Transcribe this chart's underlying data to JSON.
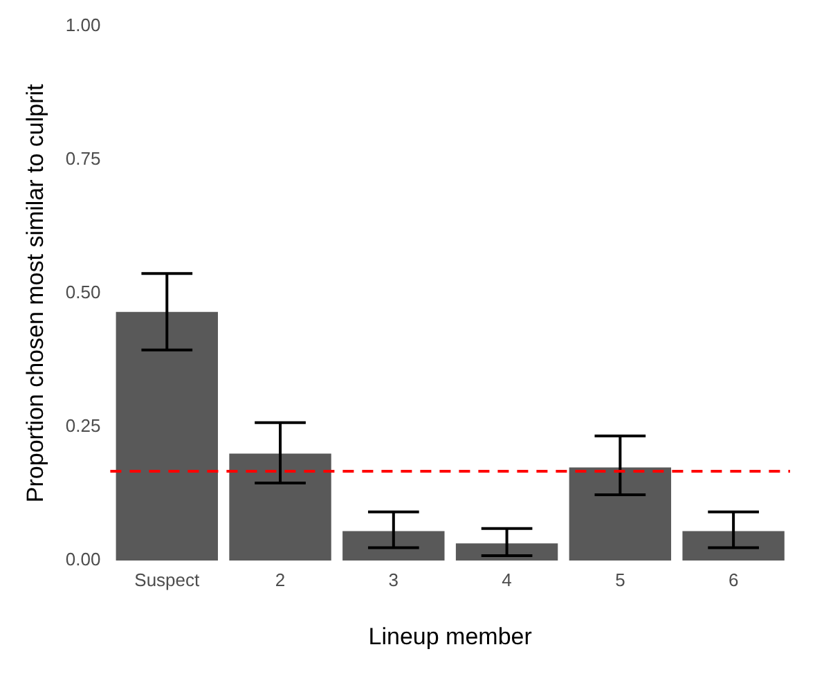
{
  "chart_data": {
    "type": "bar",
    "xlabel": "Lineup member",
    "ylabel": "Proportion chosen most similar to culprit",
    "categories": [
      "Suspect",
      "2",
      "3",
      "4",
      "5",
      "6"
    ],
    "series": [
      {
        "color": "#595959",
        "values": [
          0.465,
          0.2,
          0.055,
          0.032,
          0.174,
          0.055
        ],
        "errors": [
          [
            0.394,
            0.537
          ],
          [
            0.145,
            0.258
          ],
          [
            0.024,
            0.091
          ],
          [
            0.009,
            0.06
          ],
          [
            0.123,
            0.233
          ],
          [
            0.024,
            0.091
          ]
        ]
      }
    ],
    "ylim": [
      0,
      1
    ],
    "yticks": [
      {
        "value": 0,
        "label": "0.00"
      },
      {
        "value": 0.25,
        "label": "0.25"
      },
      {
        "value": 0.5,
        "label": "0.50"
      },
      {
        "value": 0.75,
        "label": "0.75"
      },
      {
        "value": 1,
        "label": "1.00"
      }
    ],
    "ref_lines": [
      {
        "axis": "y",
        "value": 0.167,
        "color": "#ff0000",
        "line_style": "dashed"
      }
    ],
    "grid": false,
    "legend": false
  }
}
